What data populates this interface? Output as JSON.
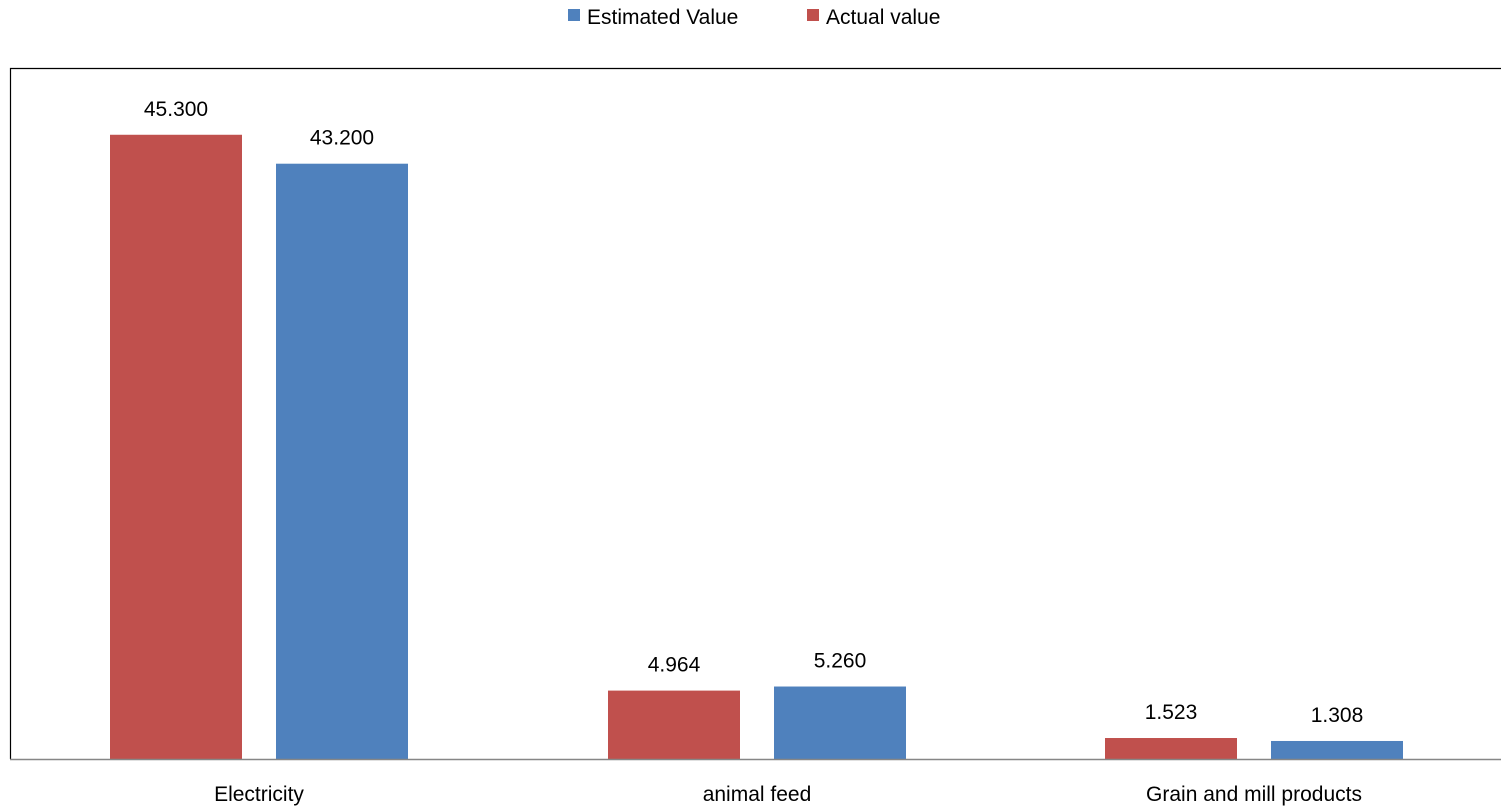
{
  "chart_data": {
    "type": "bar",
    "categories": [
      "Electricity",
      "animal feed",
      "Grain and mill products"
    ],
    "series": [
      {
        "name": "Actual value",
        "color": "#C0504D",
        "values": [
          45.3,
          4.964,
          1.523
        ],
        "labels": [
          "45.300",
          "4.964",
          "1.523"
        ]
      },
      {
        "name": "Estimated Value",
        "color": "#4F81BD",
        "values": [
          43.2,
          5.26,
          1.308
        ],
        "labels": [
          "43.200",
          "5.260",
          "1.308"
        ]
      }
    ],
    "legend": {
      "position": "top",
      "entries": [
        {
          "name": "Estimated Value",
          "color": "#4F81BD"
        },
        {
          "name": "Actual value",
          "color": "#C0504D"
        }
      ]
    },
    "ylim": [
      0,
      50
    ],
    "grid": false,
    "title": "",
    "xlabel": "",
    "ylabel": ""
  }
}
